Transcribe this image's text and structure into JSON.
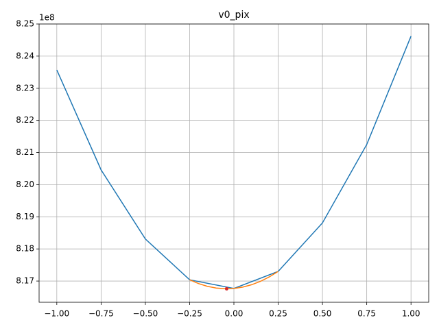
{
  "chart_data": {
    "type": "line",
    "title": "v0_pix",
    "y_offset_label": "1e8",
    "xlim": [
      -1.1,
      1.1
    ],
    "xticks": [
      {
        "value": -1,
        "label": "−1.00"
      },
      {
        "value": -0.75,
        "label": "−0.75"
      },
      {
        "value": -0.5,
        "label": "−0.50"
      },
      {
        "value": -0.25,
        "label": "−0.25"
      },
      {
        "value": 0,
        "label": "0.00"
      },
      {
        "value": 0.25,
        "label": "0.25"
      },
      {
        "value": 0.5,
        "label": "0.50"
      },
      {
        "value": 0.75,
        "label": "0.75"
      },
      {
        "value": 1,
        "label": "1.00"
      }
    ],
    "ylim": [
      8.1634,
      8.25
    ],
    "yticks": [
      8.17,
      8.18,
      8.19,
      {
        "value": 8.2,
        "label": "8.20"
      },
      8.21,
      8.22,
      8.23,
      8.24,
      8.25
    ],
    "grid": true,
    "series": [
      {
        "color": "#1f77b4",
        "marker": false,
        "x": [
          -1,
          -0.75,
          -0.5,
          -0.25,
          0,
          0.25,
          0.5,
          0.75,
          1
        ],
        "values": [
          8.2357,
          8.2046,
          8.1831,
          8.1704,
          8.1677,
          8.173,
          8.1881,
          8.2125,
          8.2462
        ]
      },
      {
        "color": "#ff7f0e",
        "marker": false,
        "x": [
          -0.25,
          -0.2,
          -0.15,
          -0.1,
          -0.05,
          0,
          0.05,
          0.1,
          0.15,
          0.2,
          0.25
        ],
        "values": [
          8.1704,
          8.16922,
          8.16836,
          8.16782,
          8.1676,
          8.1677,
          8.16812,
          8.16886,
          8.16992,
          8.1713,
          8.173
        ]
      },
      {
        "color": "#d62728",
        "marker": true,
        "x": [
          -0.041
        ],
        "values": [
          8.1676
        ]
      }
    ]
  }
}
